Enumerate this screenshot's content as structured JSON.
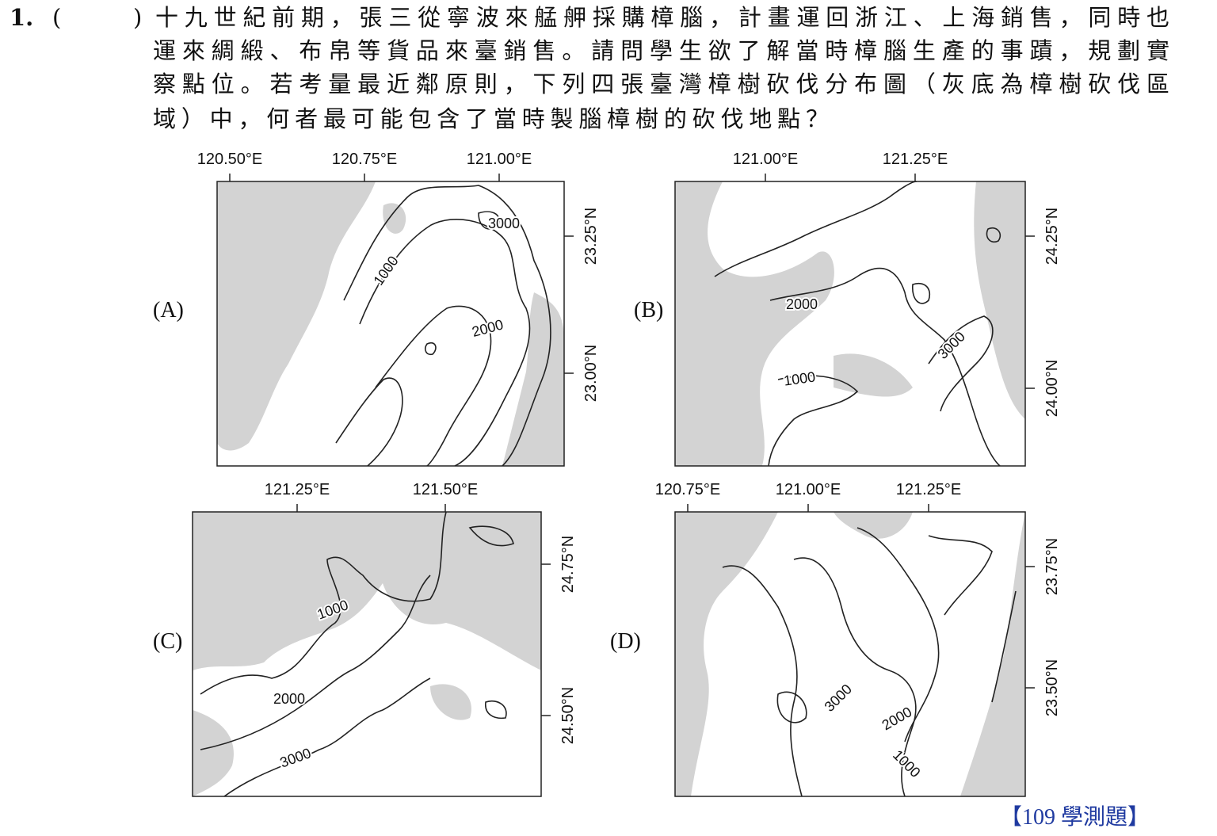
{
  "question": {
    "number": "1.",
    "paren_open": "(",
    "paren_close": ")",
    "lines": [
      "十九世紀前期，張三從寧波來艋舺採購樟腦，計畫運回浙江、上海銷售，同時也",
      "運來綢緞、布帛等貨品來臺銷售。請問學生欲了解當時樟腦生產的事蹟，規劃實",
      "察點位。若考量最近鄰原則，下列四張臺灣樟樹砍伐分布圖（灰底為樟樹砍伐區",
      "域）中，何者最可能包含了當時製腦樟樹的砍伐地點？"
    ]
  },
  "maps": [
    {
      "label": "(A)",
      "lon_ticks": [
        "120.50°E",
        "120.75°E",
        "121.00°E"
      ],
      "lat_ticks": [
        "23.25°N",
        "23.00°N"
      ],
      "contours": [
        "3000",
        "1000",
        "2000"
      ]
    },
    {
      "label": "(B)",
      "lon_ticks": [
        "121.00°E",
        "121.25°E"
      ],
      "lat_ticks": [
        "24.25°N",
        "24.00°N"
      ],
      "contours": [
        "2000",
        "3000",
        "1000"
      ]
    },
    {
      "label": "(C)",
      "lon_ticks": [
        "121.25°E",
        "121.50°E"
      ],
      "lat_ticks": [
        "24.75°N",
        "24.50°N"
      ],
      "contours": [
        "1000",
        "2000",
        "3000"
      ]
    },
    {
      "label": "(D)",
      "lon_ticks": [
        "120.75°E",
        "121.00°E",
        "121.25°E"
      ],
      "lat_ticks": [
        "23.75°N",
        "23.50°N"
      ],
      "contours": [
        "3000",
        "2000",
        "1000"
      ]
    }
  ],
  "source": "【109 學測題】"
}
